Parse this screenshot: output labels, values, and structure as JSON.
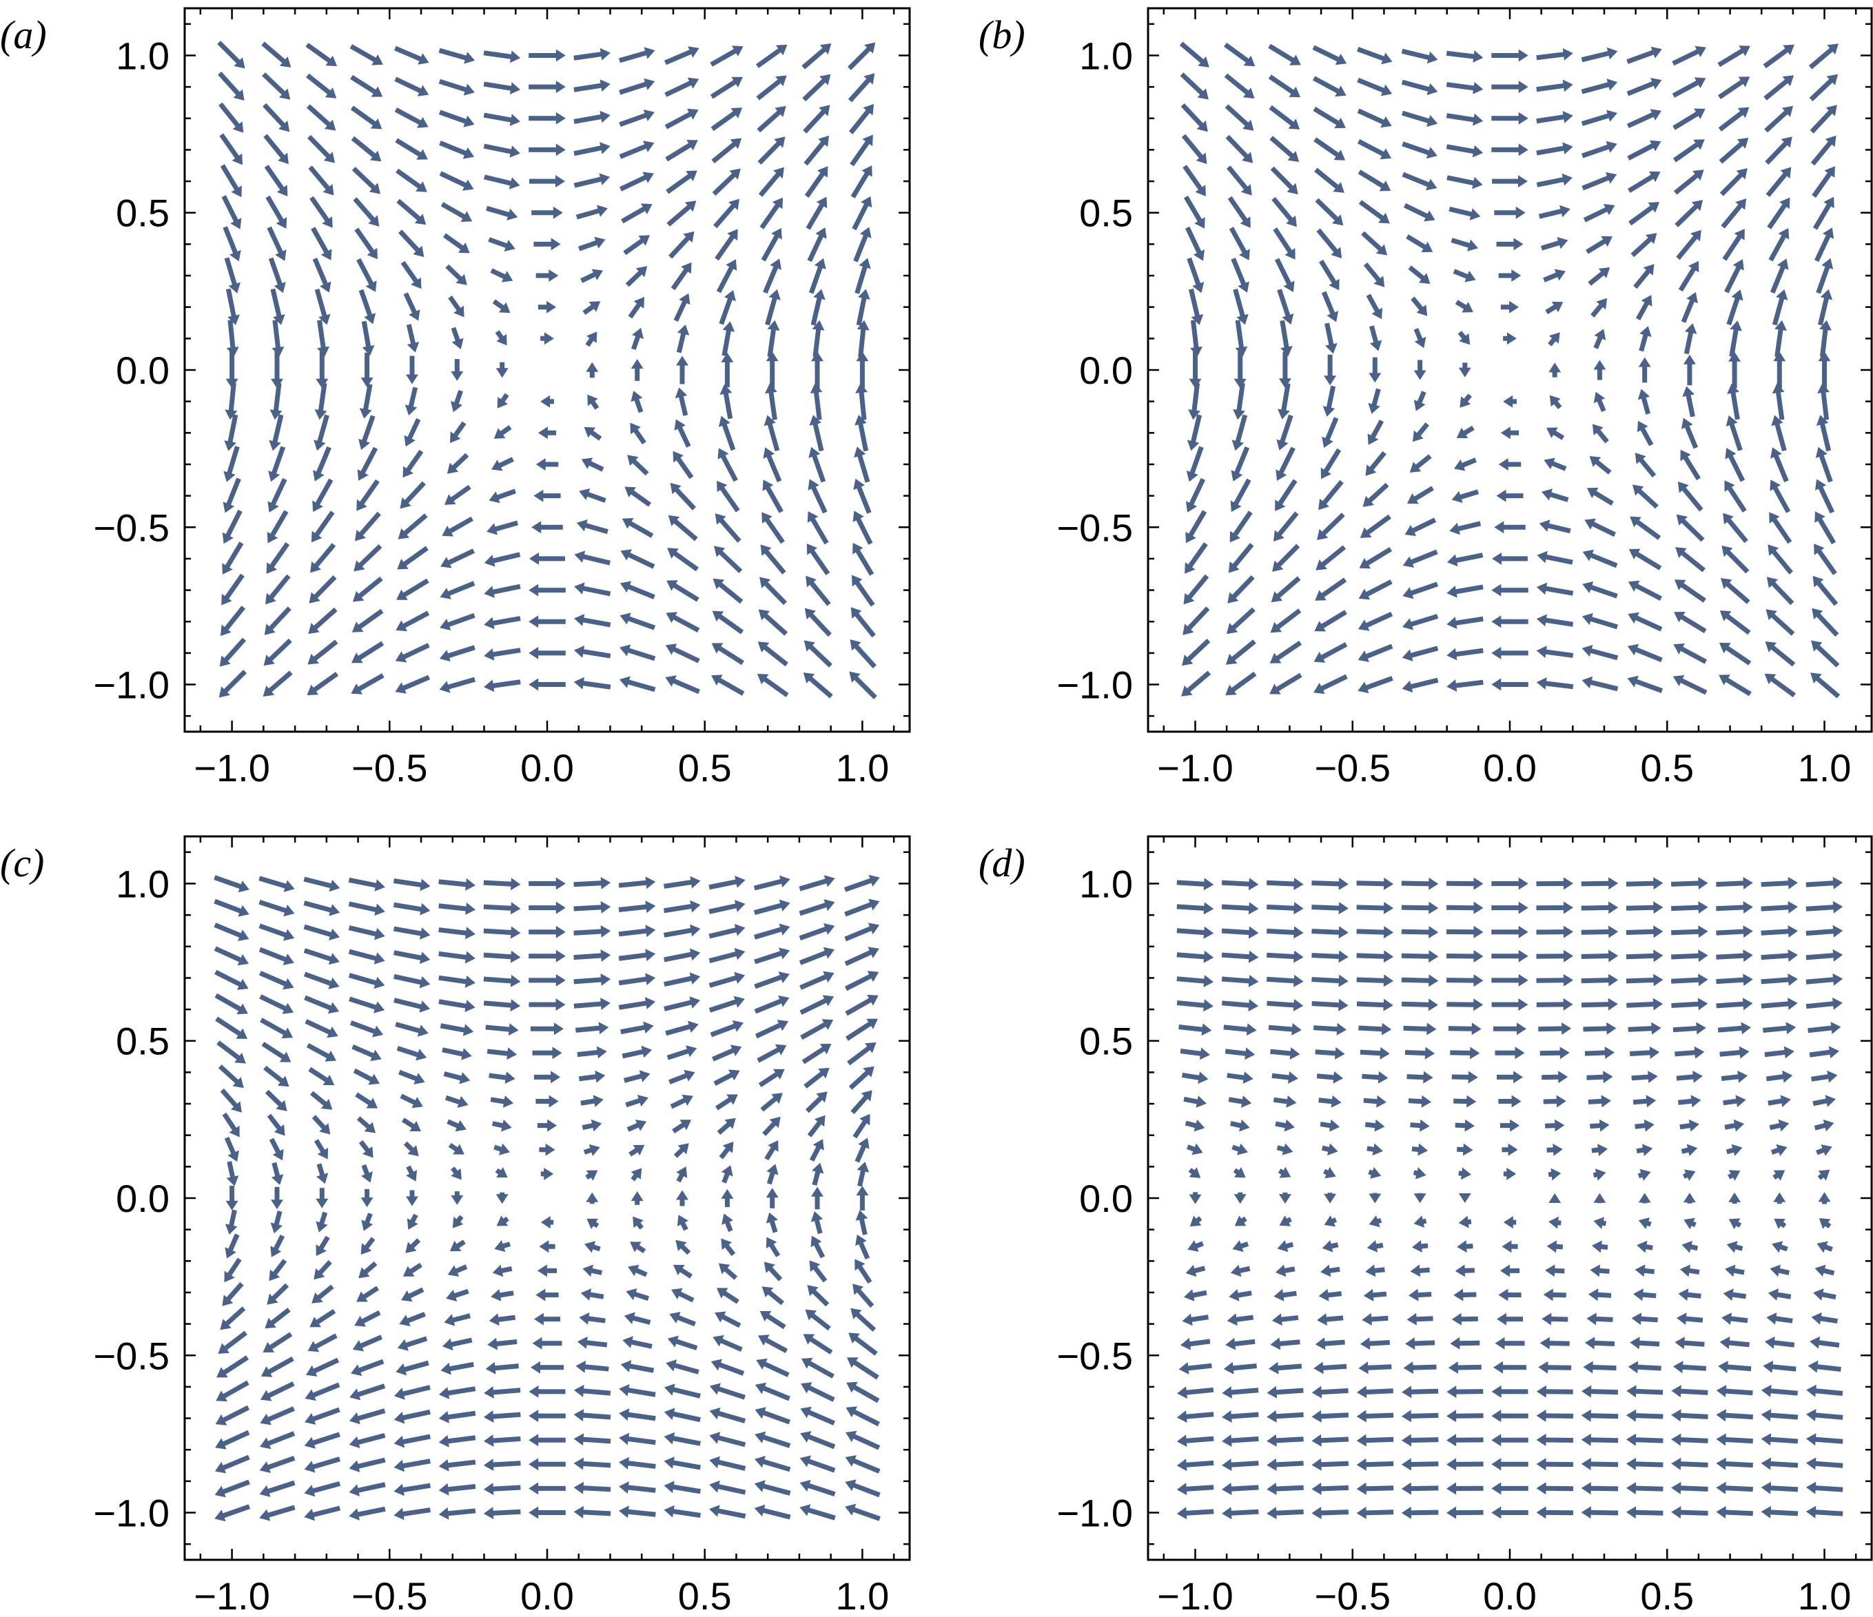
{
  "figure": {
    "background": "#ffffff",
    "arrow_color": "#4a6189"
  },
  "chart_data": [
    {
      "type": "vector-field",
      "panel_label": "(a)",
      "description_field": "saddle",
      "field": {
        "form": "saddle",
        "a": 1.0,
        "b": 1.0,
        "c": 0.0
      },
      "grid": {
        "nx": 15,
        "ny": 21,
        "xrange": [
          -1.0,
          1.0
        ],
        "yrange": [
          -1.0,
          1.0
        ]
      },
      "xlim": [
        -1.15,
        1.15
      ],
      "ylim": [
        -1.15,
        1.15
      ],
      "xticks": [
        -1.0,
        -0.5,
        0.0,
        0.5,
        1.0
      ],
      "yticks": [
        -1.0,
        -0.5,
        0.0,
        0.5,
        1.0
      ],
      "xtick_labels": [
        "−1.0",
        "−0.5",
        "0.0",
        "0.5",
        "1.0"
      ],
      "ytick_labels": [
        "−1.0",
        "−0.5",
        "0.0",
        "0.5",
        "1.0"
      ]
    },
    {
      "type": "vector-field",
      "panel_label": "(b)",
      "field": {
        "form": "saddle",
        "a": 1.0,
        "b": 0.85,
        "c": 0.0
      },
      "grid": {
        "nx": 15,
        "ny": 21,
        "xrange": [
          -1.0,
          1.0
        ],
        "yrange": [
          -1.0,
          1.0
        ]
      },
      "xlim": [
        -1.15,
        1.15
      ],
      "ylim": [
        -1.15,
        1.15
      ],
      "xticks": [
        -1.0,
        -0.5,
        0.0,
        0.5,
        1.0
      ],
      "yticks": [
        -1.0,
        -0.5,
        0.0,
        0.5,
        1.0
      ],
      "xtick_labels": [
        "−1.0",
        "−0.5",
        "0.0",
        "0.5",
        "1.0"
      ],
      "ytick_labels": [
        "−1.0",
        "−0.5",
        "0.0",
        "0.5",
        "1.0"
      ]
    },
    {
      "type": "vector-field",
      "panel_label": "(c)",
      "field": {
        "form": "saddle",
        "a": 1.0,
        "b": 0.35,
        "c": 0.0
      },
      "grid": {
        "nx": 15,
        "ny": 27,
        "xrange": [
          -1.0,
          1.0
        ],
        "yrange": [
          -1.0,
          1.0
        ]
      },
      "xlim": [
        -1.15,
        1.15
      ],
      "ylim": [
        -1.15,
        1.15
      ],
      "xticks": [
        -1.0,
        -0.5,
        0.0,
        0.5,
        1.0
      ],
      "yticks": [
        -1.0,
        -0.5,
        0.0,
        0.5,
        1.0
      ],
      "xtick_labels": [
        "−1.0",
        "−0.5",
        "0.0",
        "0.5",
        "1.0"
      ],
      "ytick_labels": [
        "−1.0",
        "−0.5",
        "0.0",
        "0.5",
        "1.0"
      ]
    },
    {
      "type": "vector-field",
      "panel_label": "(d)",
      "field": {
        "form": "shear",
        "a": 1.0,
        "b": 0.06,
        "c": 0.0
      },
      "grid": {
        "nx": 15,
        "ny": 27,
        "xrange": [
          -1.0,
          1.0
        ],
        "yrange": [
          -1.0,
          1.0
        ]
      },
      "xlim": [
        -1.15,
        1.15
      ],
      "ylim": [
        -1.15,
        1.15
      ],
      "xticks": [
        -1.0,
        -0.5,
        0.0,
        0.5,
        1.0
      ],
      "yticks": [
        -1.0,
        -0.5,
        0.0,
        0.5,
        1.0
      ],
      "xtick_labels": [
        "−1.0",
        "−0.5",
        "0.0",
        "0.5",
        "1.0"
      ],
      "ytick_labels": [
        "−1.0",
        "−0.5",
        "0.0",
        "0.5",
        "1.0"
      ]
    }
  ]
}
